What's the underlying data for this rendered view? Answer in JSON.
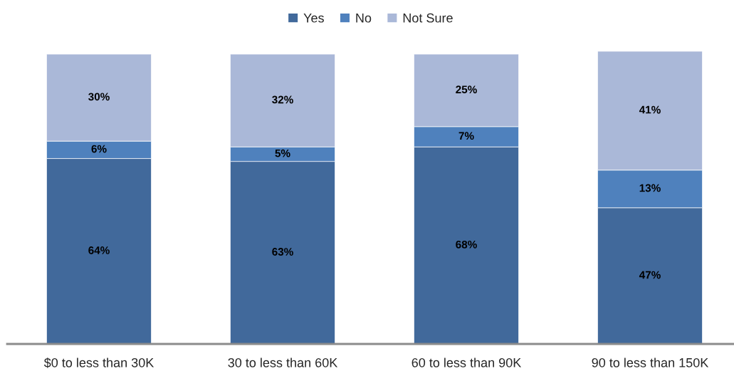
{
  "chart_data": {
    "type": "bar",
    "stacked": true,
    "categories": [
      "$0 to less than 30K",
      "30 to less than 60K",
      "60 to less than 90K",
      "90 to less than 150K"
    ],
    "series": [
      {
        "name": "Yes",
        "color": "#41699b",
        "values": [
          64,
          63,
          68,
          47
        ],
        "value_labels": [
          "64%",
          "63%",
          "68%",
          "47%"
        ]
      },
      {
        "name": "No",
        "color": "#4f81bd",
        "values": [
          6,
          5,
          7,
          13
        ],
        "value_labels": [
          "6%",
          "5%",
          "7%",
          "13%"
        ]
      },
      {
        "name": "Not Sure",
        "color": "#aab8d8",
        "values": [
          30,
          32,
          25,
          41
        ],
        "value_labels": [
          "30%",
          "32%",
          "25%",
          "41%"
        ]
      }
    ],
    "legend": "top",
    "grid": false
  }
}
